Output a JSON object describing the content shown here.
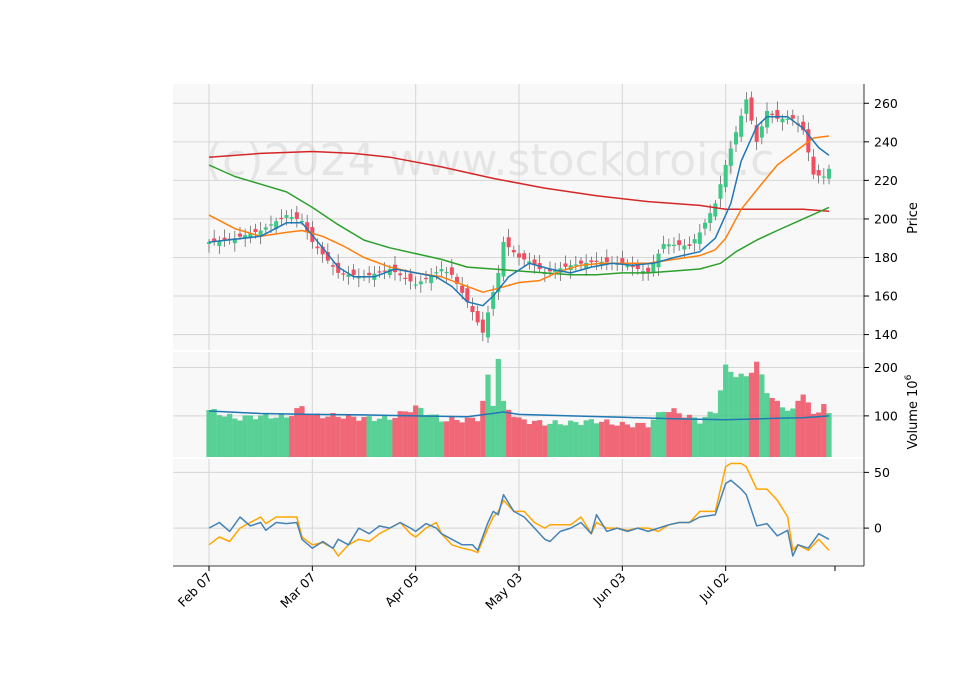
{
  "watermark": "(c)2024 www.stockdroid.c",
  "colors": {
    "up": "#3dc985",
    "down": "#ef4f60",
    "ma_short": "#1f77b4",
    "ma_mid": "#ff7f0e",
    "ma_long": "#2ca02c",
    "ma_200": "#d62728",
    "osc_a": "#4682b4",
    "osc_b": "#ffa500"
  },
  "chart_data": {
    "type": "candlestick",
    "x_tick_labels": [
      "Feb 07",
      "Mar 07",
      "Apr 05",
      "May 03",
      "Jun 03",
      "Jul 02"
    ],
    "x_tick_index": [
      0,
      20,
      40,
      60,
      80,
      100
    ],
    "bar_count": 121,
    "price_panel": {
      "ylabel": "Price",
      "yticks": [
        140,
        160,
        180,
        200,
        220,
        240,
        260
      ],
      "ylim": [
        132,
        270
      ],
      "close_anchors": [
        [
          0,
          188
        ],
        [
          5,
          190
        ],
        [
          10,
          194
        ],
        [
          15,
          202
        ],
        [
          18,
          199
        ],
        [
          20,
          188
        ],
        [
          25,
          172
        ],
        [
          30,
          170
        ],
        [
          35,
          174
        ],
        [
          40,
          166
        ],
        [
          45,
          174
        ],
        [
          47,
          171
        ],
        [
          50,
          157
        ],
        [
          53,
          141
        ],
        [
          55,
          162
        ],
        [
          56,
          172
        ],
        [
          57,
          188
        ],
        [
          60,
          180
        ],
        [
          62,
          178
        ],
        [
          65,
          172
        ],
        [
          70,
          176
        ],
        [
          75,
          178
        ],
        [
          80,
          177
        ],
        [
          85,
          172
        ],
        [
          88,
          187
        ],
        [
          93,
          186
        ],
        [
          95,
          193
        ],
        [
          98,
          208
        ],
        [
          100,
          228
        ],
        [
          102,
          245
        ],
        [
          104,
          262
        ],
        [
          106,
          240
        ],
        [
          108,
          256
        ],
        [
          110,
          252
        ],
        [
          113,
          252
        ],
        [
          115,
          246
        ],
        [
          117,
          223
        ],
        [
          119,
          222
        ],
        [
          120,
          226
        ]
      ],
      "ma_short": [
        [
          0,
          188
        ],
        [
          10,
          191
        ],
        [
          15,
          198
        ],
        [
          18,
          198
        ],
        [
          22,
          185
        ],
        [
          25,
          175
        ],
        [
          28,
          170
        ],
        [
          32,
          170
        ],
        [
          36,
          174
        ],
        [
          40,
          172
        ],
        [
          44,
          170
        ],
        [
          47,
          165
        ],
        [
          50,
          157
        ],
        [
          53,
          155
        ],
        [
          55,
          160
        ],
        [
          58,
          170
        ],
        [
          62,
          177
        ],
        [
          66,
          174
        ],
        [
          70,
          172
        ],
        [
          74,
          175
        ],
        [
          78,
          177
        ],
        [
          82,
          176
        ],
        [
          86,
          177
        ],
        [
          90,
          180
        ],
        [
          95,
          183
        ],
        [
          98,
          190
        ],
        [
          101,
          208
        ],
        [
          103,
          230
        ],
        [
          106,
          248
        ],
        [
          108,
          253
        ],
        [
          112,
          253
        ],
        [
          115,
          247
        ],
        [
          118,
          237
        ],
        [
          120,
          233
        ]
      ],
      "ma_mid": [
        [
          0,
          202
        ],
        [
          5,
          195
        ],
        [
          10,
          191
        ],
        [
          15,
          193
        ],
        [
          18,
          194
        ],
        [
          22,
          191
        ],
        [
          26,
          186
        ],
        [
          30,
          180
        ],
        [
          35,
          175
        ],
        [
          40,
          172
        ],
        [
          45,
          170
        ],
        [
          50,
          165
        ],
        [
          53,
          162
        ],
        [
          56,
          164
        ],
        [
          60,
          167
        ],
        [
          64,
          168
        ],
        [
          68,
          173
        ],
        [
          72,
          176
        ],
        [
          76,
          177
        ],
        [
          80,
          177
        ],
        [
          85,
          177
        ],
        [
          90,
          179
        ],
        [
          95,
          181
        ],
        [
          98,
          184
        ],
        [
          100,
          190
        ],
        [
          103,
          205
        ],
        [
          106,
          215
        ],
        [
          110,
          228
        ],
        [
          114,
          236
        ],
        [
          117,
          242
        ],
        [
          120,
          243
        ]
      ],
      "ma_long": [
        [
          0,
          228
        ],
        [
          5,
          222
        ],
        [
          10,
          218
        ],
        [
          15,
          214
        ],
        [
          20,
          206
        ],
        [
          25,
          197
        ],
        [
          30,
          189
        ],
        [
          35,
          185
        ],
        [
          40,
          182
        ],
        [
          45,
          179
        ],
        [
          50,
          175
        ],
        [
          55,
          174
        ],
        [
          60,
          173
        ],
        [
          65,
          172
        ],
        [
          70,
          171
        ],
        [
          75,
          171
        ],
        [
          80,
          172
        ],
        [
          85,
          172
        ],
        [
          90,
          173
        ],
        [
          95,
          174
        ],
        [
          99,
          177
        ],
        [
          102,
          183
        ],
        [
          106,
          189
        ],
        [
          110,
          194
        ],
        [
          115,
          200
        ],
        [
          120,
          206
        ]
      ],
      "ma_200": [
        [
          0,
          232
        ],
        [
          10,
          234
        ],
        [
          20,
          235
        ],
        [
          28,
          234
        ],
        [
          35,
          232
        ],
        [
          45,
          227
        ],
        [
          55,
          221
        ],
        [
          65,
          216
        ],
        [
          75,
          212
        ],
        [
          85,
          209
        ],
        [
          95,
          207
        ],
        [
          100,
          205
        ],
        [
          110,
          205
        ],
        [
          115,
          205
        ],
        [
          120,
          204
        ]
      ]
    },
    "volume_panel": {
      "ylabel": "Volume",
      "unit_exponent": "6",
      "yticks": [
        100,
        200
      ],
      "ylim": [
        15,
        232
      ],
      "volume_anchors": [
        [
          0,
          112
        ],
        [
          5,
          95
        ],
        [
          10,
          100
        ],
        [
          15,
          98
        ],
        [
          18,
          118
        ],
        [
          20,
          100
        ],
        [
          25,
          100
        ],
        [
          30,
          95
        ],
        [
          35,
          95
        ],
        [
          40,
          118
        ],
        [
          45,
          92
        ],
        [
          50,
          92
        ],
        [
          52,
          95
        ],
        [
          53,
          130
        ],
        [
          54,
          180
        ],
        [
          55,
          125
        ],
        [
          56,
          220
        ],
        [
          57,
          125
        ],
        [
          60,
          92
        ],
        [
          65,
          85
        ],
        [
          70,
          85
        ],
        [
          75,
          90
        ],
        [
          80,
          82
        ],
        [
          85,
          82
        ],
        [
          88,
          112
        ],
        [
          90,
          110
        ],
        [
          95,
          90
        ],
        [
          98,
          110
        ],
        [
          100,
          200
        ],
        [
          102,
          185
        ],
        [
          104,
          180
        ],
        [
          106,
          210
        ],
        [
          108,
          152
        ],
        [
          110,
          125
        ],
        [
          113,
          110
        ],
        [
          115,
          150
        ],
        [
          117,
          100
        ],
        [
          119,
          125
        ],
        [
          120,
          100
        ]
      ],
      "avg_anchors": [
        [
          0,
          110
        ],
        [
          10,
          105
        ],
        [
          20,
          103
        ],
        [
          30,
          102
        ],
        [
          40,
          100
        ],
        [
          50,
          98
        ],
        [
          57,
          108
        ],
        [
          60,
          103
        ],
        [
          70,
          100
        ],
        [
          80,
          97
        ],
        [
          90,
          94
        ],
        [
          100,
          92
        ],
        [
          110,
          95
        ],
        [
          115,
          96
        ],
        [
          120,
          100
        ]
      ]
    },
    "oscillator_panel": {
      "yticks": [
        0,
        50
      ],
      "ylim": [
        -34,
        62
      ],
      "line_a": [
        [
          0,
          0
        ],
        [
          2,
          5
        ],
        [
          4,
          -3
        ],
        [
          6,
          10
        ],
        [
          8,
          2
        ],
        [
          10,
          5
        ],
        [
          11,
          -2
        ],
        [
          13,
          5
        ],
        [
          15,
          4
        ],
        [
          17,
          5
        ],
        [
          18,
          -10
        ],
        [
          20,
          -18
        ],
        [
          22,
          -12
        ],
        [
          24,
          -18
        ],
        [
          25,
          -10
        ],
        [
          27,
          -15
        ],
        [
          29,
          0
        ],
        [
          31,
          -5
        ],
        [
          33,
          2
        ],
        [
          35,
          0
        ],
        [
          37,
          5
        ],
        [
          39,
          0
        ],
        [
          40,
          -3
        ],
        [
          42,
          4
        ],
        [
          44,
          0
        ],
        [
          45,
          -5
        ],
        [
          47,
          -10
        ],
        [
          49,
          -15
        ],
        [
          51,
          -15
        ],
        [
          52,
          -20
        ],
        [
          54,
          5
        ],
        [
          55,
          15
        ],
        [
          56,
          12
        ],
        [
          57,
          30
        ],
        [
          59,
          15
        ],
        [
          61,
          10
        ],
        [
          63,
          0
        ],
        [
          65,
          -10
        ],
        [
          66,
          -12
        ],
        [
          68,
          -3
        ],
        [
          70,
          0
        ],
        [
          72,
          5
        ],
        [
          74,
          -5
        ],
        [
          75,
          12
        ],
        [
          77,
          -3
        ],
        [
          79,
          0
        ],
        [
          81,
          -3
        ],
        [
          83,
          0
        ],
        [
          85,
          -3
        ],
        [
          87,
          0
        ],
        [
          89,
          3
        ],
        [
          91,
          5
        ],
        [
          93,
          5
        ],
        [
          95,
          10
        ],
        [
          98,
          12
        ],
        [
          100,
          40
        ],
        [
          101,
          43
        ],
        [
          103,
          35
        ],
        [
          104,
          30
        ],
        [
          106,
          2
        ],
        [
          108,
          4
        ],
        [
          110,
          -7
        ],
        [
          112,
          -2
        ],
        [
          113,
          -25
        ],
        [
          114,
          -15
        ],
        [
          116,
          -18
        ],
        [
          118,
          -5
        ],
        [
          120,
          -10
        ]
      ],
      "line_b": [
        [
          0,
          -15
        ],
        [
          2,
          -8
        ],
        [
          4,
          -12
        ],
        [
          6,
          0
        ],
        [
          8,
          5
        ],
        [
          10,
          10
        ],
        [
          11,
          4
        ],
        [
          13,
          10
        ],
        [
          15,
          10
        ],
        [
          17,
          10
        ],
        [
          18,
          -8
        ],
        [
          20,
          -15
        ],
        [
          22,
          -13
        ],
        [
          24,
          -18
        ],
        [
          25,
          -25
        ],
        [
          27,
          -15
        ],
        [
          29,
          -10
        ],
        [
          31,
          -12
        ],
        [
          33,
          -5
        ],
        [
          35,
          0
        ],
        [
          37,
          5
        ],
        [
          39,
          -5
        ],
        [
          40,
          -8
        ],
        [
          42,
          0
        ],
        [
          44,
          5
        ],
        [
          45,
          -5
        ],
        [
          47,
          -15
        ],
        [
          49,
          -18
        ],
        [
          51,
          -20
        ],
        [
          52,
          -22
        ],
        [
          54,
          0
        ],
        [
          55,
          10
        ],
        [
          56,
          15
        ],
        [
          57,
          25
        ],
        [
          59,
          15
        ],
        [
          61,
          15
        ],
        [
          63,
          5
        ],
        [
          65,
          0
        ],
        [
          66,
          3
        ],
        [
          68,
          3
        ],
        [
          70,
          3
        ],
        [
          72,
          10
        ],
        [
          74,
          -5
        ],
        [
          75,
          5
        ],
        [
          77,
          0
        ],
        [
          79,
          0
        ],
        [
          81,
          -2
        ],
        [
          83,
          0
        ],
        [
          85,
          0
        ],
        [
          87,
          -3
        ],
        [
          89,
          3
        ],
        [
          91,
          5
        ],
        [
          93,
          5
        ],
        [
          95,
          15
        ],
        [
          98,
          15
        ],
        [
          100,
          55
        ],
        [
          101,
          58
        ],
        [
          103,
          58
        ],
        [
          104,
          55
        ],
        [
          106,
          35
        ],
        [
          108,
          35
        ],
        [
          110,
          25
        ],
        [
          112,
          10
        ],
        [
          113,
          -20
        ],
        [
          114,
          -15
        ],
        [
          116,
          -20
        ],
        [
          118,
          -10
        ],
        [
          120,
          -20
        ]
      ]
    }
  }
}
